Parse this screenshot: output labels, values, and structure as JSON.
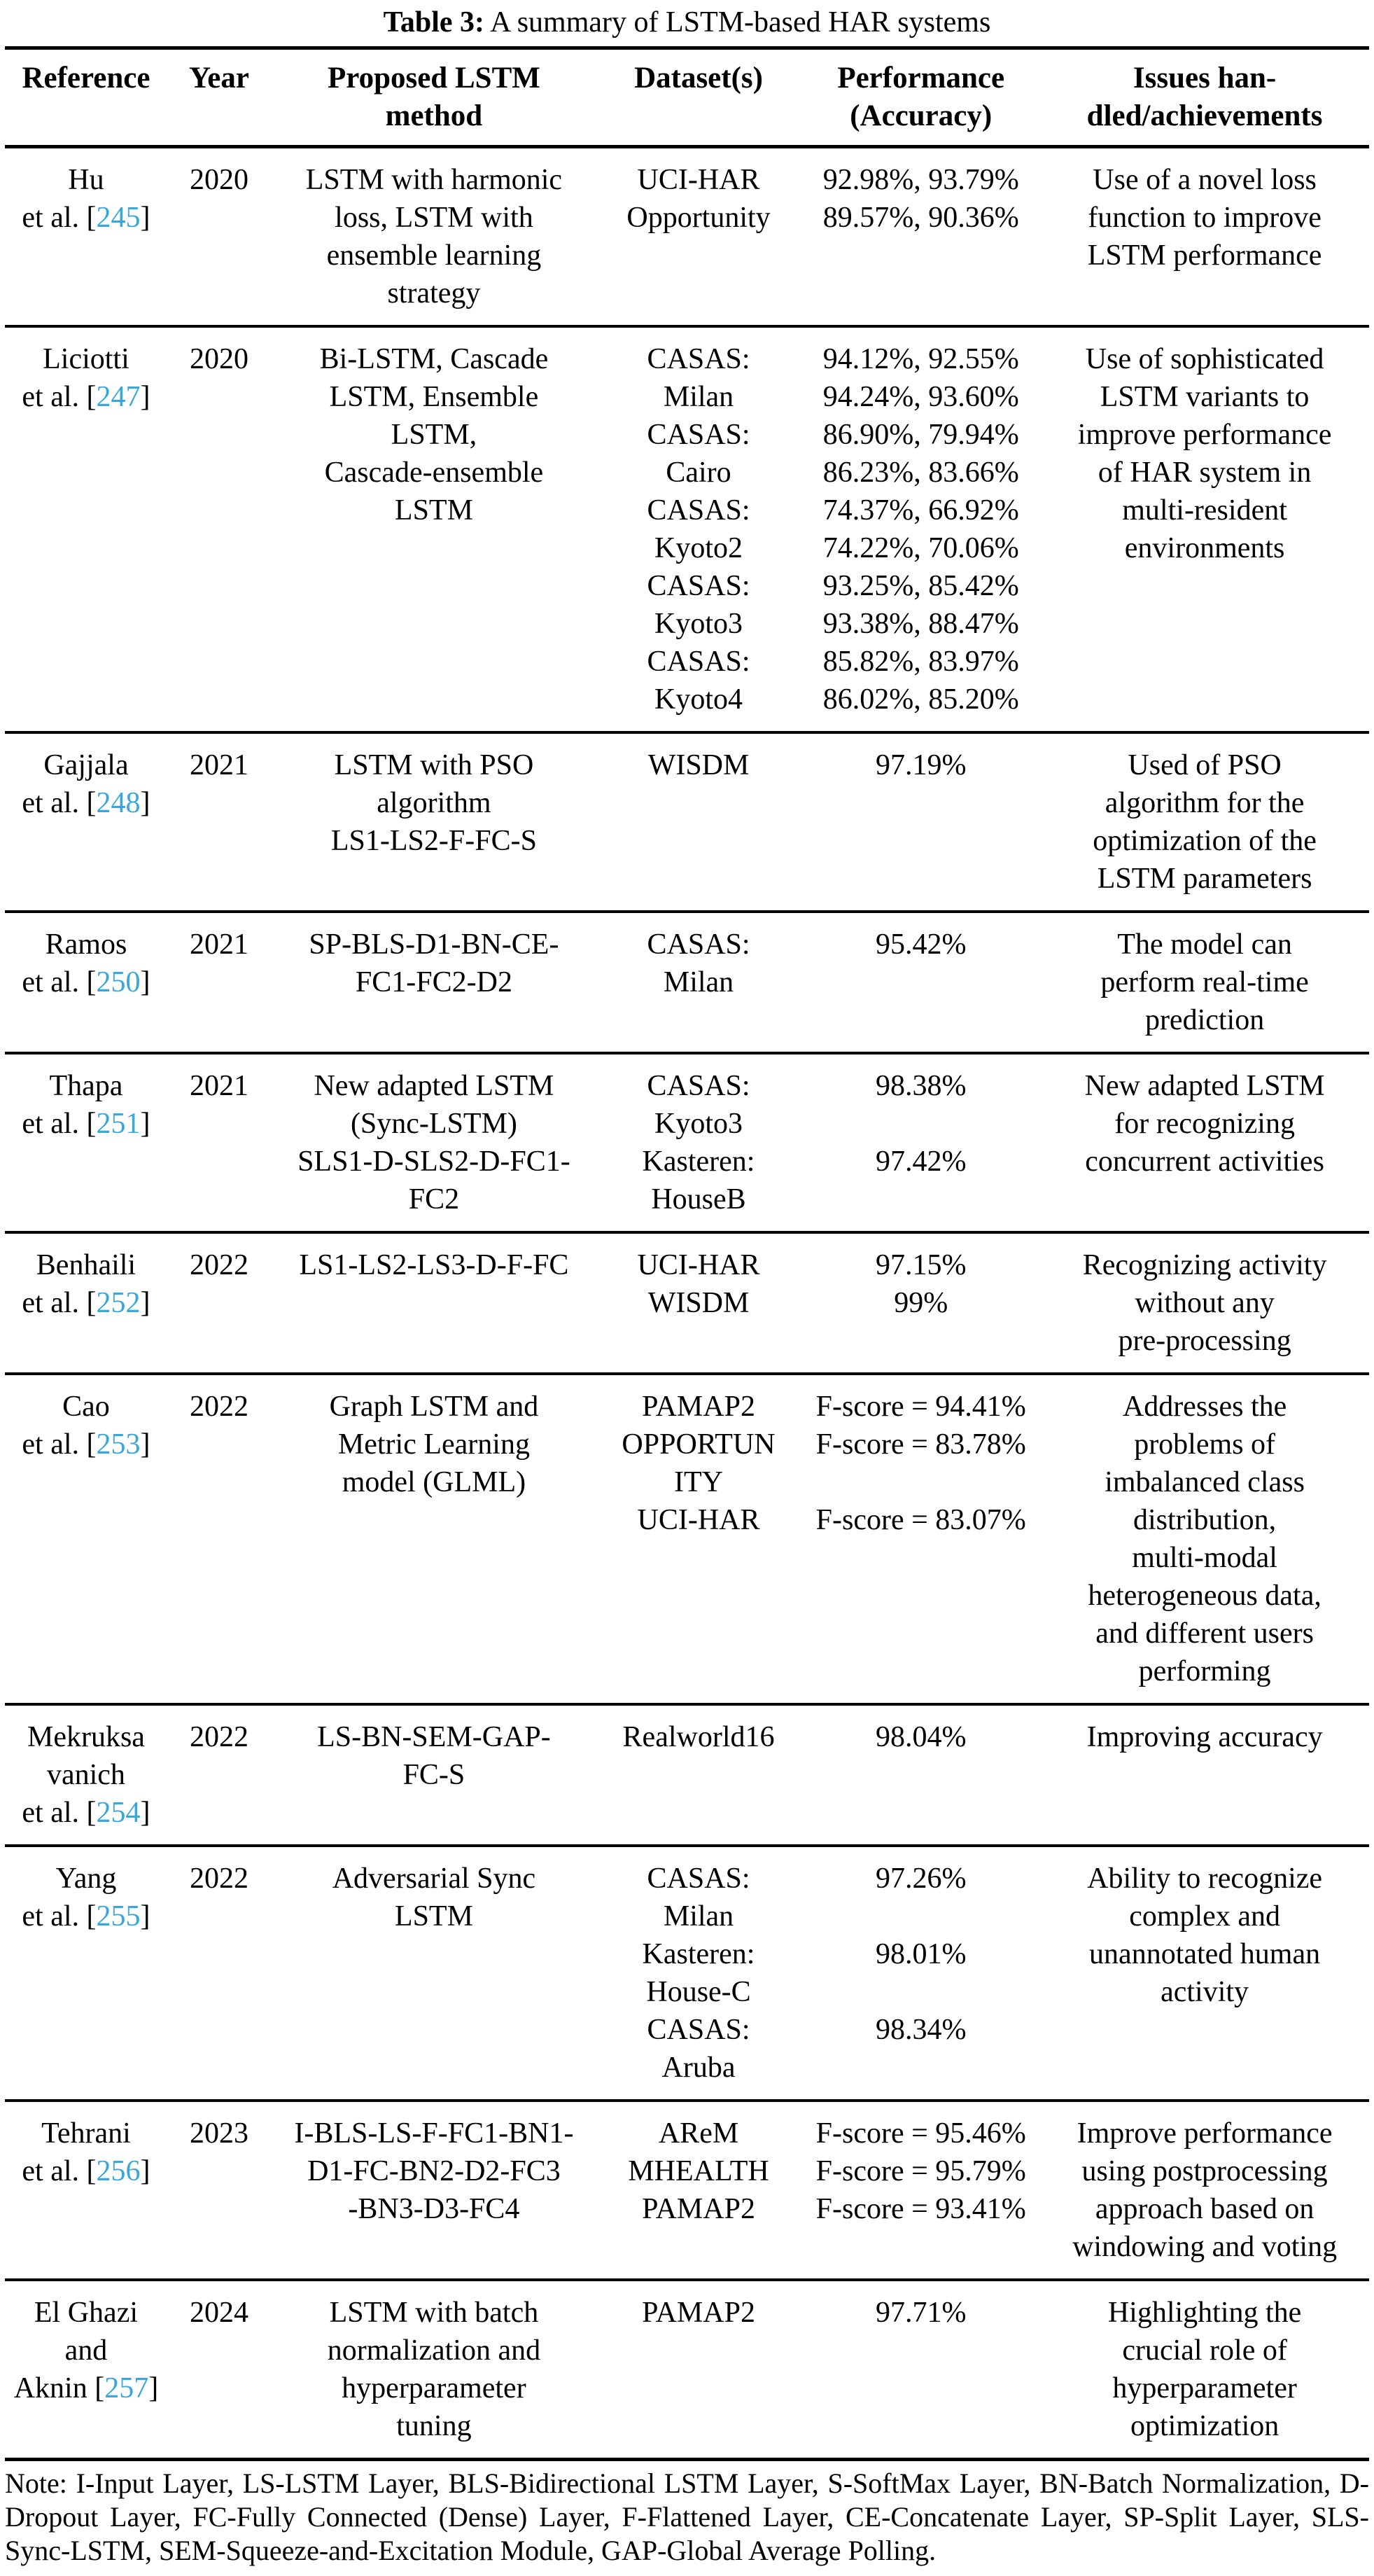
{
  "caption": {
    "label": "Table 3:",
    "text": " A summary of LSTM-based HAR systems"
  },
  "link_color": "#3aa7db",
  "columns": [
    {
      "key": "reference",
      "label": [
        "Reference"
      ]
    },
    {
      "key": "year",
      "label": [
        "Year"
      ]
    },
    {
      "key": "method",
      "label": [
        "Proposed LSTM",
        "method"
      ]
    },
    {
      "key": "datasets",
      "label": [
        "Dataset(s)"
      ]
    },
    {
      "key": "performance",
      "label": [
        "Performance",
        "(Accuracy)"
      ]
    },
    {
      "key": "issues",
      "label": [
        "Issues han-",
        "dled/achievements"
      ]
    }
  ],
  "rows": [
    {
      "reference": {
        "lines": [
          "Hu"
        ],
        "cite": {
          "pre": "et al. [",
          "num": "245",
          "post": "]"
        }
      },
      "year": "2020",
      "method": [
        "LSTM with harmonic",
        "loss, LSTM with",
        "ensemble learning",
        "strategy"
      ],
      "datasets": [
        "UCI-HAR",
        "Opportunity"
      ],
      "performance": [
        "92.98%, 93.79%",
        "89.57%, 90.36%"
      ],
      "issues": [
        "Use of a novel loss",
        "function to improve",
        "LSTM performance"
      ]
    },
    {
      "reference": {
        "lines": [
          "Liciotti"
        ],
        "cite": {
          "pre": "et al. [",
          "num": "247",
          "post": "]"
        }
      },
      "year": "2020",
      "method": [
        "Bi-LSTM, Cascade",
        "LSTM, Ensemble",
        "LSTM,",
        "Cascade-ensemble",
        "LSTM"
      ],
      "datasets": [
        "CASAS:",
        "Milan",
        "CASAS:",
        "Cairo",
        "CASAS:",
        "Kyoto2",
        "CASAS:",
        "Kyoto3",
        "CASAS:",
        "Kyoto4"
      ],
      "performance": [
        "94.12%, 92.55%",
        "94.24%, 93.60%",
        "86.90%, 79.94%",
        "86.23%, 83.66%",
        "74.37%, 66.92%",
        "74.22%, 70.06%",
        "93.25%, 85.42%",
        "93.38%, 88.47%",
        "85.82%, 83.97%",
        "86.02%, 85.20%"
      ],
      "issues": [
        "Use of sophisticated",
        "LSTM variants to",
        "improve performance",
        "of HAR system in",
        "multi-resident",
        "environments"
      ]
    },
    {
      "reference": {
        "lines": [
          "Gajjala"
        ],
        "cite": {
          "pre": "et al. [",
          "num": "248",
          "post": "]"
        }
      },
      "year": "2021",
      "method": [
        "LSTM with PSO",
        "algorithm",
        "LS1-LS2-F-FC-S"
      ],
      "datasets": [
        "WISDM"
      ],
      "performance": [
        "97.19%"
      ],
      "issues": [
        "Used of PSO",
        "algorithm for the",
        "optimization of the",
        "LSTM parameters"
      ]
    },
    {
      "reference": {
        "lines": [
          "Ramos"
        ],
        "cite": {
          "pre": "et al. [",
          "num": "250",
          "post": "]"
        }
      },
      "year": "2021",
      "method": [
        "SP-BLS-D1-BN-CE-",
        "FC1-FC2-D2"
      ],
      "datasets": [
        "CASAS:",
        "Milan"
      ],
      "performance": [
        "95.42%",
        ""
      ],
      "issues": [
        "The model can",
        "perform real-time",
        "prediction"
      ]
    },
    {
      "reference": {
        "lines": [
          "Thapa"
        ],
        "cite": {
          "pre": "et al. [",
          "num": "251",
          "post": "]"
        }
      },
      "year": "2021",
      "method": [
        "New adapted LSTM",
        "(Sync-LSTM)",
        "SLS1-D-SLS2-D-FC1-",
        "FC2"
      ],
      "datasets": [
        "CASAS:",
        "Kyoto3",
        "Kasteren:",
        "HouseB"
      ],
      "performance": [
        "98.38%",
        "",
        "97.42%",
        ""
      ],
      "issues": [
        "New adapted LSTM",
        "for recognizing",
        "concurrent activities"
      ]
    },
    {
      "reference": {
        "lines": [
          "Benhaili"
        ],
        "cite": {
          "pre": "et al. [",
          "num": "252",
          "post": "]"
        }
      },
      "year": "2022",
      "method": [
        "LS1-LS2-LS3-D-F-FC"
      ],
      "datasets": [
        "UCI-HAR",
        "WISDM"
      ],
      "performance": [
        "97.15%",
        "99%"
      ],
      "issues": [
        "Recognizing activity",
        "without any",
        "pre-processing"
      ]
    },
    {
      "reference": {
        "lines": [
          "Cao"
        ],
        "cite": {
          "pre": "et al. [",
          "num": "253",
          "post": "]"
        }
      },
      "year": "2022",
      "method": [
        "Graph LSTM and",
        "Metric Learning",
        "model (GLML)"
      ],
      "datasets": [
        "PAMAP2",
        "OPPORTUN",
        "ITY",
        "UCI-HAR"
      ],
      "performance": [
        "F-score = 94.41%",
        "F-score = 83.78%",
        "",
        "F-score = 83.07%"
      ],
      "issues": [
        "Addresses the",
        "problems of",
        "imbalanced class",
        "distribution,",
        "multi-modal",
        "heterogeneous data,",
        "and different users",
        "performing"
      ]
    },
    {
      "reference": {
        "lines": [
          "Mekruksa",
          "vanich"
        ],
        "cite": {
          "pre": "et al. [",
          "num": "254",
          "post": "]"
        }
      },
      "year": "2022",
      "method": [
        "LS-BN-SEM-GAP-",
        "FC-S"
      ],
      "datasets": [
        "Realworld16"
      ],
      "performance": [
        "98.04%"
      ],
      "issues": [
        "Improving accuracy"
      ]
    },
    {
      "reference": {
        "lines": [
          "Yang"
        ],
        "cite": {
          "pre": "et al. [",
          "num": "255",
          "post": "]"
        }
      },
      "year": "2022",
      "method": [
        "Adversarial Sync",
        "LSTM"
      ],
      "datasets": [
        "CASAS:",
        "Milan",
        "Kasteren:",
        "House-C",
        "CASAS:",
        "Aruba"
      ],
      "performance": [
        "97.26%",
        "",
        "98.01%",
        "",
        "98.34%",
        ""
      ],
      "issues": [
        "Ability to recognize",
        "complex and",
        "unannotated human",
        "activity"
      ]
    },
    {
      "reference": {
        "lines": [
          "Tehrani"
        ],
        "cite": {
          "pre": "et al. [",
          "num": "256",
          "post": "]"
        }
      },
      "year": "2023",
      "method": [
        "I-BLS-LS-F-FC1-BN1-",
        "D1-FC-BN2-D2-FC3",
        "-BN3-D3-FC4"
      ],
      "datasets": [
        "AReM",
        "MHEALTH",
        "PAMAP2"
      ],
      "performance": [
        "F-score = 95.46%",
        "F-score = 95.79%",
        "F-score = 93.41%"
      ],
      "issues": [
        "Improve performance",
        "using postprocessing",
        "approach based on",
        "windowing and voting"
      ]
    },
    {
      "reference": {
        "lines": [
          "El Ghazi",
          "and"
        ],
        "cite": {
          "pre": "Aknin [",
          "num": "257",
          "post": "]"
        }
      },
      "year": "2024",
      "method": [
        "LSTM with batch",
        "normalization and",
        "hyperparameter",
        "tuning"
      ],
      "datasets": [
        "PAMAP2"
      ],
      "performance": [
        "97.71%"
      ],
      "issues": [
        "Highlighting the",
        "crucial role of",
        "hyperparameter",
        "optimization"
      ]
    }
  ],
  "note": "Note: I-Input Layer, LS-LSTM Layer, BLS-Bidirectional LSTM Layer, S-SoftMax Layer, BN-Batch Normalization, D-Dropout Layer, FC-Fully Connected (Dense) Layer, F-Flattened Layer, CE-Concatenate Layer, SP-Split Layer, SLS-Sync-LSTM, SEM-Squeeze-and-Excitation Module, GAP-Global Average Polling."
}
